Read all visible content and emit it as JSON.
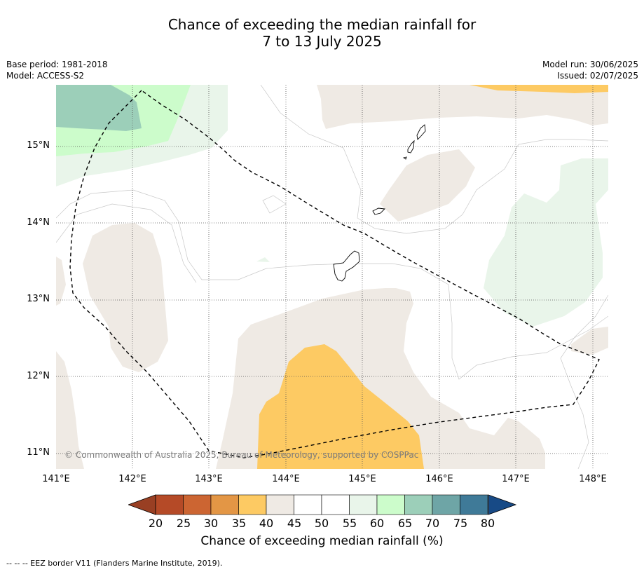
{
  "header": {
    "title_line1": "Chance of exceeding the median rainfall for",
    "title_line2": "7 to 13 July 2025",
    "base_period": "Base period: 1981-2018",
    "model": "Model: ACCESS-S2",
    "model_run": "Model run: 30/06/2025",
    "issued": "Issued: 02/07/2025"
  },
  "map": {
    "lat_labels": [
      "15°N",
      "14°N",
      "13°N",
      "12°N",
      "11°N"
    ],
    "lon_labels": [
      "141°E",
      "142°E",
      "143°E",
      "144°E",
      "145°E",
      "146°E",
      "147°E",
      "148°E"
    ],
    "copyright": "© Commonwealth of Australia 2025, Bureau of Meteorology, supported by COSPPac",
    "category_colors": {
      "35-40": "#fdca63",
      "45-50": "#efeae4",
      "50-55": "#ffffff",
      "55-60": "#e9f5ea",
      "60-65": "#ccfccb",
      "65-70": "#9ccfb9"
    }
  },
  "colorbar": {
    "title": "Chance of exceeding median rainfall (%)",
    "tick_labels": [
      "20",
      "25",
      "30",
      "35",
      "40",
      "45",
      "50",
      "55",
      "60",
      "65",
      "70",
      "75",
      "80"
    ],
    "colors": [
      "#b54a27",
      "#cc6532",
      "#e39645",
      "#fdca63",
      "#efeae4",
      "#ffffff",
      "#ffffff",
      "#e9f5ea",
      "#ccfccb",
      "#9ccfb9",
      "#6ea5a6",
      "#3f7a98"
    ],
    "under_color": "#993f23",
    "over_color": "#174a86"
  },
  "footnote": "--  --  -- EEZ border V11 (Flanders Marine Institute, 2019)."
}
